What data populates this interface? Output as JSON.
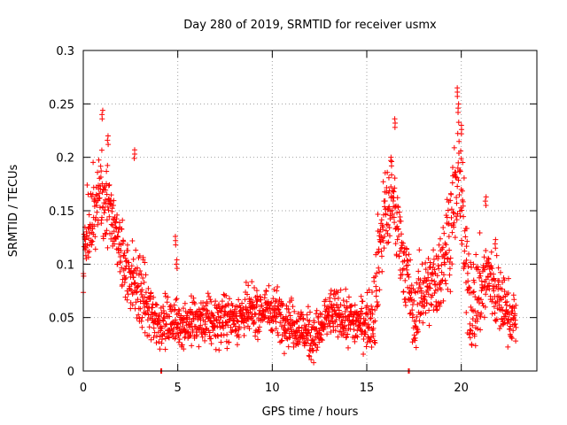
{
  "chart_data": {
    "type": "scatter",
    "title": "Day 280 of 2019, SRMTID for receiver usmx",
    "xlabel": "GPS time / hours",
    "ylabel": "SRMTID / TECUs",
    "xlim": [
      0,
      24
    ],
    "ylim": [
      0,
      0.3
    ],
    "x_ticks": [
      0,
      5,
      10,
      15,
      20
    ],
    "y_ticks": [
      0,
      0.05,
      0.1,
      0.15,
      0.2,
      0.25,
      0.3
    ],
    "x_tick_labels": [
      "0",
      "5",
      "10",
      "15",
      "20"
    ],
    "y_tick_labels": [
      "0",
      "0.05",
      "0.1",
      "0.15",
      "0.2",
      "0.25",
      "0.3"
    ],
    "grid": true,
    "marker": "+",
    "color": "#ff0000",
    "series": [
      {
        "name": "SRMTID",
        "profile": [
          {
            "x": 0.0,
            "y": 0.105
          },
          {
            "x": 0.3,
            "y": 0.13
          },
          {
            "x": 0.6,
            "y": 0.155
          },
          {
            "x": 1.0,
            "y": 0.165
          },
          {
            "x": 1.4,
            "y": 0.15
          },
          {
            "x": 1.8,
            "y": 0.12
          },
          {
            "x": 2.2,
            "y": 0.1
          },
          {
            "x": 2.6,
            "y": 0.085
          },
          {
            "x": 3.0,
            "y": 0.075
          },
          {
            "x": 3.5,
            "y": 0.055
          },
          {
            "x": 4.0,
            "y": 0.045
          },
          {
            "x": 5.0,
            "y": 0.045
          },
          {
            "x": 6.0,
            "y": 0.045
          },
          {
            "x": 7.0,
            "y": 0.047
          },
          {
            "x": 8.0,
            "y": 0.05
          },
          {
            "x": 9.0,
            "y": 0.055
          },
          {
            "x": 10.0,
            "y": 0.058
          },
          {
            "x": 11.0,
            "y": 0.045
          },
          {
            "x": 12.0,
            "y": 0.033
          },
          {
            "x": 12.5,
            "y": 0.035
          },
          {
            "x": 13.0,
            "y": 0.055
          },
          {
            "x": 14.0,
            "y": 0.048
          },
          {
            "x": 15.0,
            "y": 0.045
          },
          {
            "x": 15.4,
            "y": 0.06
          },
          {
            "x": 15.7,
            "y": 0.12
          },
          {
            "x": 16.0,
            "y": 0.15
          },
          {
            "x": 16.4,
            "y": 0.155
          },
          {
            "x": 16.8,
            "y": 0.12
          },
          {
            "x": 17.2,
            "y": 0.08
          },
          {
            "x": 17.5,
            "y": 0.045
          },
          {
            "x": 17.8,
            "y": 0.07
          },
          {
            "x": 18.3,
            "y": 0.08
          },
          {
            "x": 18.8,
            "y": 0.085
          },
          {
            "x": 19.2,
            "y": 0.12
          },
          {
            "x": 19.6,
            "y": 0.15
          },
          {
            "x": 19.9,
            "y": 0.195
          },
          {
            "x": 20.2,
            "y": 0.1
          },
          {
            "x": 20.6,
            "y": 0.06
          },
          {
            "x": 21.0,
            "y": 0.075
          },
          {
            "x": 21.5,
            "y": 0.09
          },
          {
            "x": 22.0,
            "y": 0.065
          },
          {
            "x": 22.5,
            "y": 0.055
          },
          {
            "x": 22.9,
            "y": 0.045
          }
        ],
        "spread": [
          {
            "x": 0.0,
            "s": 0.035
          },
          {
            "x": 3.5,
            "s": 0.03
          },
          {
            "x": 4.0,
            "s": 0.02
          },
          {
            "x": 15.0,
            "s": 0.02
          },
          {
            "x": 15.5,
            "s": 0.04
          },
          {
            "x": 17.5,
            "s": 0.03
          },
          {
            "x": 18.5,
            "s": 0.03
          },
          {
            "x": 20.0,
            "s": 0.05
          },
          {
            "x": 21.0,
            "s": 0.04
          },
          {
            "x": 22.9,
            "s": 0.02
          }
        ],
        "n_points": 1900,
        "x_range": [
          0.0,
          22.9
        ],
        "peaks": [
          {
            "x": 1.0,
            "y": 0.244
          },
          {
            "x": 1.3,
            "y": 0.22
          },
          {
            "x": 2.7,
            "y": 0.207
          },
          {
            "x": 4.9,
            "y": 0.126
          },
          {
            "x": 4.95,
            "y": 0.104
          },
          {
            "x": 16.5,
            "y": 0.236
          },
          {
            "x": 16.3,
            "y": 0.2
          },
          {
            "x": 19.8,
            "y": 0.265
          },
          {
            "x": 19.85,
            "y": 0.25
          },
          {
            "x": 20.0,
            "y": 0.23
          },
          {
            "x": 21.3,
            "y": 0.163
          },
          {
            "x": 21.8,
            "y": 0.123
          }
        ],
        "zero_points": [
          {
            "x": 4.1,
            "y": 0.0
          },
          {
            "x": 4.15,
            "y": 0.0
          },
          {
            "x": 17.2,
            "y": 0.0
          },
          {
            "x": 17.25,
            "y": 0.0
          }
        ]
      }
    ]
  }
}
